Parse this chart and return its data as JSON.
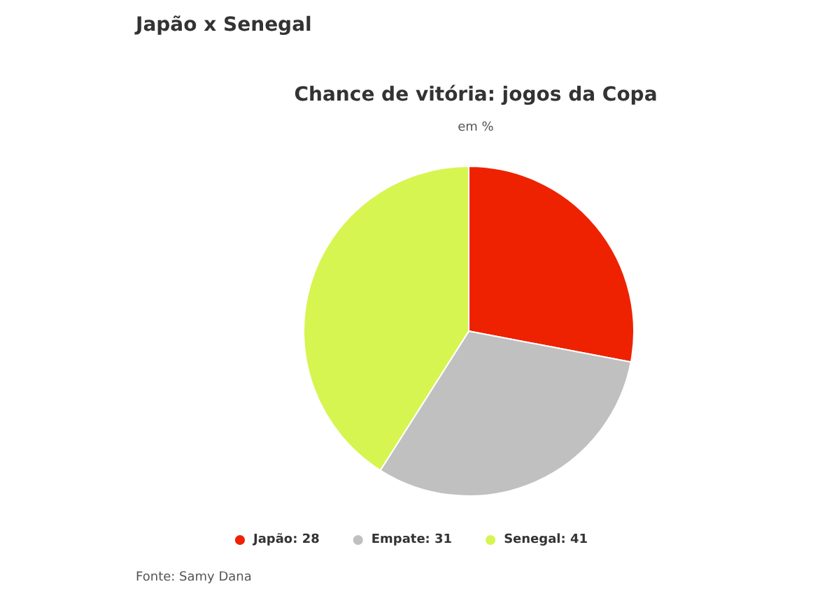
{
  "chart_data": {
    "type": "pie",
    "title": "Japão x Senegal",
    "subtitle": "Chance de vitória: jogos da Copa",
    "annotations": [
      "em %",
      "Fonte: Samy Dana"
    ],
    "categories": [
      "Japão: 28",
      "Empate: 31",
      "Senegal: 41"
    ],
    "values": [
      28,
      31,
      41
    ],
    "colors": [
      "#ee2200",
      "#c0c0c0",
      "#d6f551"
    ],
    "legend": "bottom"
  }
}
